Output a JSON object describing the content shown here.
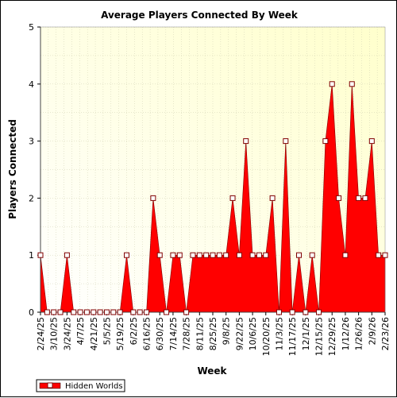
{
  "chart_data": {
    "type": "area",
    "title": "Average Players Connected By Week",
    "xlabel": "Week",
    "ylabel": "Players Connected",
    "ylim": [
      0,
      5
    ],
    "yticks": [
      0,
      1,
      2,
      3,
      4,
      5
    ],
    "grid": true,
    "legend_position": "bottom-left",
    "x_tick_labels": [
      "2/24/25",
      "3/10/25",
      "3/24/25",
      "4/7/25",
      "4/21/25",
      "5/5/25",
      "5/19/25",
      "6/2/25",
      "6/16/25",
      "6/30/25",
      "7/14/25",
      "7/28/25",
      "8/11/25",
      "8/25/25",
      "9/8/25",
      "9/22/25",
      "10/6/25",
      "10/20/25",
      "11/3/25",
      "11/17/25",
      "12/1/25",
      "12/15/25",
      "12/29/25",
      "1/12/26",
      "1/26/26",
      "2/9/26",
      "2/23/26"
    ],
    "x": [
      "2/24/25",
      "3/3/25",
      "3/10/25",
      "3/17/25",
      "3/24/25",
      "3/31/25",
      "4/7/25",
      "4/14/25",
      "4/21/25",
      "4/28/25",
      "5/5/25",
      "5/12/25",
      "5/19/25",
      "5/26/25",
      "6/2/25",
      "6/9/25",
      "6/16/25",
      "6/23/25",
      "6/30/25",
      "7/7/25",
      "7/14/25",
      "7/21/25",
      "7/28/25",
      "8/4/25",
      "8/11/25",
      "8/18/25",
      "8/25/25",
      "9/1/25",
      "9/8/25",
      "9/15/25",
      "9/22/25",
      "9/29/25",
      "10/6/25",
      "10/13/25",
      "10/20/25",
      "10/27/25",
      "11/3/25",
      "11/10/25",
      "11/17/25",
      "11/24/25",
      "12/1/25",
      "12/8/25",
      "12/15/25",
      "12/22/25",
      "12/29/25",
      "1/5/26",
      "1/12/26",
      "1/19/26",
      "1/26/26",
      "2/2/26",
      "2/9/26",
      "2/16/26",
      "2/23/26"
    ],
    "series": [
      {
        "name": "Hidden Worlds",
        "color": "#ff0000",
        "values": [
          1,
          0,
          0,
          0,
          1,
          0,
          0,
          0,
          0,
          0,
          0,
          0,
          0,
          1,
          0,
          0,
          0,
          2,
          1,
          0,
          1,
          1,
          0,
          1,
          1,
          1,
          1,
          1,
          1,
          2,
          1,
          3,
          1,
          1,
          1,
          2,
          0,
          3,
          0,
          1,
          0,
          1,
          0,
          3,
          4,
          2,
          1,
          4,
          2,
          2,
          3,
          1,
          1
        ]
      }
    ]
  }
}
